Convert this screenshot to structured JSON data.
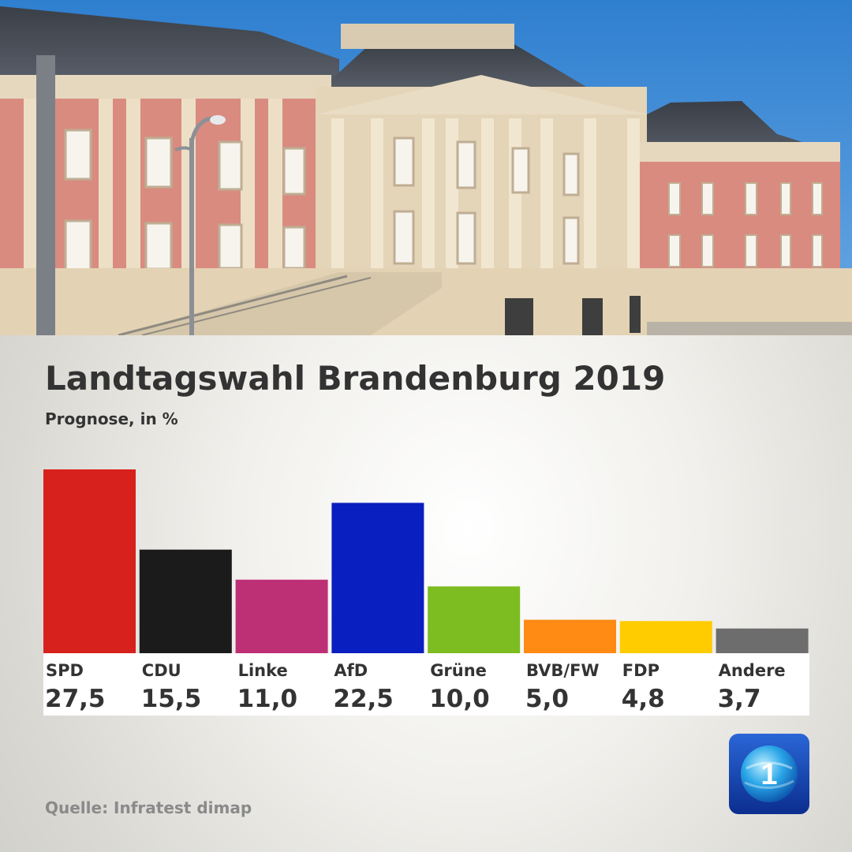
{
  "title": "Landtagswahl Brandenburg 2019",
  "subtitle": "Prognose, in %",
  "source": "Quelle: Infratest dimap",
  "logo": {
    "icon": "tagesschau-logo-icon",
    "glyph": "1"
  },
  "photo": {
    "icon": "landtag-building-photo"
  },
  "chart_data": {
    "type": "bar",
    "title": "Landtagswahl Brandenburg 2019",
    "subtitle": "Prognose, in %",
    "ylim": [
      0,
      27.5
    ],
    "grid": false,
    "legend": "none",
    "categories": [
      "SPD",
      "CDU",
      "Linke",
      "AfD",
      "Grüne",
      "BVB/FW",
      "FDP",
      "Andere"
    ],
    "values": [
      27.5,
      15.5,
      11.0,
      22.5,
      10.0,
      5.0,
      4.8,
      3.7
    ],
    "value_labels": [
      "27,5",
      "15,5",
      "11,0",
      "22,5",
      "10,0",
      "5,0",
      "4,8",
      "3,7"
    ],
    "colors": [
      "#d7211d",
      "#1b1b1b",
      "#be3075",
      "#0a1fbf",
      "#7dbd21",
      "#ff8a14",
      "#ffcc00",
      "#6d6d6d"
    ]
  }
}
